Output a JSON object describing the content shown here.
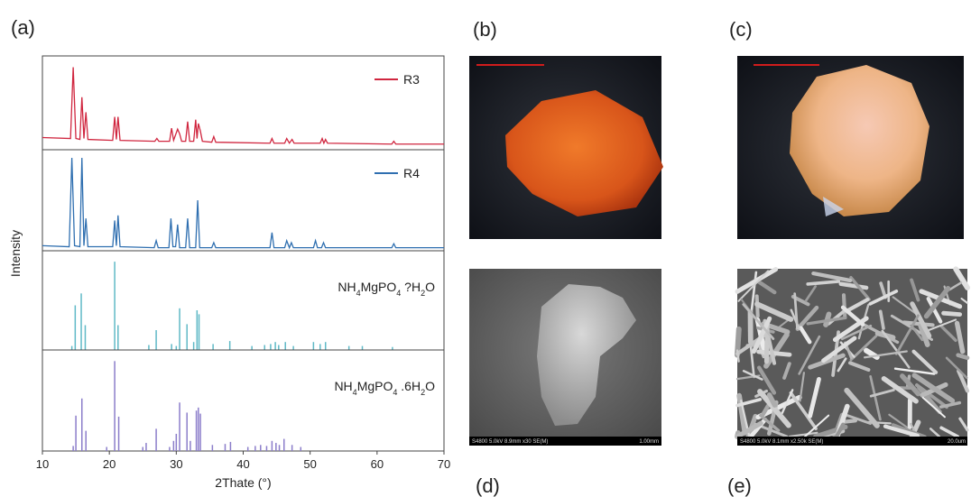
{
  "panel_labels": [
    "(a)",
    "(b)",
    "(c)",
    "(d)",
    "(e)"
  ],
  "chart_data": [
    {
      "type": "line",
      "ylabel": "Intensity",
      "xlim": [
        10,
        70
      ],
      "ylim": [
        0,
        100
      ],
      "legend": "upper right",
      "series": [
        {
          "name": "R3",
          "color": "#d0263f",
          "x": [
            10,
            14.2,
            14.6,
            15.0,
            15.6,
            15.9,
            16.2,
            16.5,
            16.8,
            20.5,
            20.8,
            21.05,
            21.3,
            21.6,
            26.8,
            27.1,
            27.4,
            29.0,
            29.3,
            29.6,
            30.2,
            30.5,
            30.8,
            31.4,
            31.7,
            32.0,
            32.6,
            32.9,
            33.1,
            33.3,
            33.6,
            33.9,
            35.3,
            35.6,
            35.9,
            44.0,
            44.3,
            44.6,
            46.2,
            46.5,
            46.9,
            47.3,
            47.6,
            51.5,
            51.8,
            52.05,
            52.3,
            52.6,
            62.2,
            62.5,
            62.8,
            70
          ],
          "values": [
            13,
            12,
            88,
            12,
            11,
            56,
            12,
            40,
            11,
            10,
            35,
            11,
            35,
            10,
            9,
            12,
            9,
            9,
            23,
            10,
            22,
            17,
            9,
            9,
            30,
            9,
            9,
            32,
            12,
            28,
            20,
            9,
            8,
            14,
            8,
            7,
            12,
            7,
            7,
            12,
            7,
            11,
            7,
            7,
            12,
            7,
            11,
            7,
            6,
            9,
            6,
            6
          ]
        }
      ]
    },
    {
      "type": "line",
      "xlim": [
        10,
        70
      ],
      "ylim": [
        0,
        100
      ],
      "legend": "upper right",
      "series": [
        {
          "name": "R4",
          "color": "#2f6fb0",
          "x": [
            10,
            14.0,
            14.4,
            14.8,
            15.6,
            15.9,
            16.2,
            16.5,
            16.8,
            20.5,
            20.8,
            21.05,
            21.3,
            21.6,
            26.7,
            27.0,
            27.3,
            28.9,
            29.2,
            29.5,
            29.9,
            30.2,
            30.5,
            31.4,
            31.7,
            32.0,
            32.9,
            33.2,
            33.5,
            35.3,
            35.6,
            35.9,
            44.0,
            44.3,
            44.6,
            46.2,
            46.5,
            46.9,
            47.2,
            47.5,
            50.5,
            50.8,
            51.1,
            51.7,
            52.0,
            52.3,
            62.2,
            62.5,
            62.8,
            70
          ],
          "values": [
            5,
            4,
            92,
            5,
            4,
            92,
            5,
            32,
            4,
            4,
            30,
            5,
            35,
            4,
            3,
            10,
            3,
            3,
            32,
            4,
            4,
            26,
            3,
            3,
            32,
            3,
            3,
            50,
            3,
            3,
            8,
            3,
            3,
            18,
            3,
            3,
            10,
            3,
            8,
            3,
            3,
            10,
            3,
            3,
            8,
            3,
            3,
            7,
            3,
            3
          ]
        }
      ]
    },
    {
      "type": "stem",
      "annotation": "NH4MgPO4 ?H2O",
      "color": "#5fb9c6",
      "xlim": [
        10,
        70
      ],
      "ylim": [
        0,
        100
      ],
      "x": [
        14.4,
        14.9,
        15.8,
        16.4,
        20.8,
        21.3,
        25.9,
        27.0,
        29.3,
        30.0,
        30.5,
        31.6,
        32.6,
        33.1,
        33.4,
        35.5,
        38.0,
        41.3,
        43.2,
        44.1,
        44.8,
        45.3,
        46.3,
        47.5,
        50.5,
        51.5,
        52.3,
        55.8,
        57.8,
        62.3
      ],
      "values": [
        4,
        45,
        57,
        25,
        89,
        25,
        5,
        20,
        6,
        4,
        42,
        26,
        8,
        40,
        36,
        6,
        9,
        4,
        5,
        6,
        8,
        5,
        8,
        4,
        8,
        6,
        8,
        4,
        4,
        3
      ]
    },
    {
      "type": "stem",
      "annotation": "NH4MgPO4 .6H2O",
      "color": "#8b7dca",
      "xlim": [
        10,
        70
      ],
      "ylim": [
        0,
        100
      ],
      "xlabel": "2Thate (°)",
      "xticks": [
        10,
        20,
        30,
        40,
        50,
        60,
        70
      ],
      "x": [
        14.6,
        15.0,
        15.9,
        16.5,
        19.6,
        20.8,
        21.4,
        25.0,
        25.5,
        27.0,
        29.0,
        29.6,
        30.0,
        30.5,
        31.6,
        32.1,
        33.0,
        33.3,
        33.6,
        35.4,
        37.3,
        38.1,
        40.7,
        41.8,
        42.6,
        43.5,
        44.3,
        44.9,
        45.4,
        46.1,
        47.3,
        48.6
      ],
      "values": [
        5,
        35,
        52,
        20,
        4,
        89,
        34,
        4,
        8,
        22,
        4,
        10,
        17,
        48,
        38,
        10,
        40,
        43,
        37,
        6,
        7,
        9,
        4,
        5,
        6,
        5,
        10,
        8,
        6,
        12,
        6,
        4
      ]
    }
  ],
  "images": [
    {
      "footer": "S4800 5.0kV 8.9mm x30 SE(M)",
      "scale": "1.00mm"
    },
    {
      "footer": "S4800 5.0kV 8.1mm x2.50k SE(M)",
      "scale": "20.0um"
    }
  ]
}
